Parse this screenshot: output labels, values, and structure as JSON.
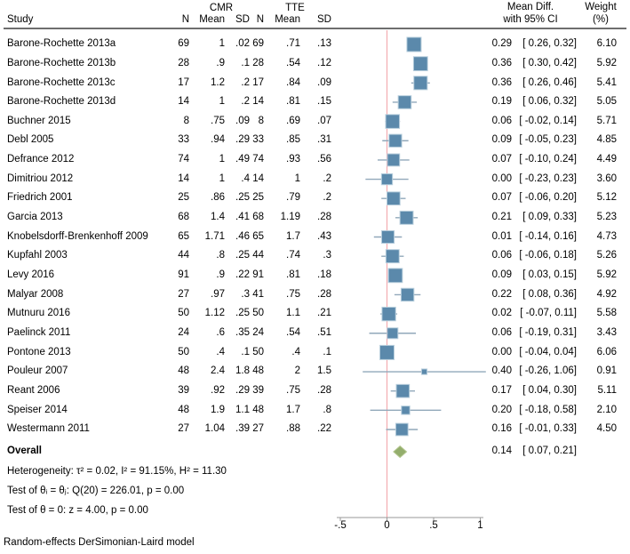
{
  "header": {
    "group1": "CMR",
    "group2": "TTE",
    "study": "Study",
    "n": "N",
    "mean": "Mean",
    "sd": "SD",
    "es_line1": "Mean Diff.",
    "es_line2": "with 95% CI",
    "weight_line1": "Weight",
    "weight_line2": "(%)"
  },
  "chart_data": {
    "type": "scatter",
    "subtype": "forest-plot-meta-analysis",
    "title": "",
    "xlabel": "",
    "x_axis": {
      "range": [
        -0.5,
        1.1
      ],
      "ticks": [
        -0.5,
        0,
        0.5,
        1
      ],
      "tick_labels": [
        "-.5",
        "0",
        ".5",
        "1"
      ],
      "reference_line": 0
    },
    "studies": [
      {
        "name": "Barone-Rochette 2013a",
        "cmr_n": "69",
        "cmr_mean": "1",
        "cmr_sd": ".02",
        "tte_n": "69",
        "tte_mean": ".71",
        "tte_sd": ".13",
        "est": 0.29,
        "lo": 0.26,
        "hi": 0.32,
        "weight": 6.1,
        "est_label": "0.29",
        "ci_label": "[ 0.26, 0.32]",
        "weight_label": "6.10"
      },
      {
        "name": "Barone-Rochette 2013b",
        "cmr_n": "28",
        "cmr_mean": ".9",
        "cmr_sd": ".1",
        "tte_n": "28",
        "tte_mean": ".54",
        "tte_sd": ".12",
        "est": 0.36,
        "lo": 0.3,
        "hi": 0.42,
        "weight": 5.92,
        "est_label": "0.36",
        "ci_label": "[ 0.30, 0.42]",
        "weight_label": "5.92"
      },
      {
        "name": "Barone-Rochette 2013c",
        "cmr_n": "17",
        "cmr_mean": "1.2",
        "cmr_sd": ".2",
        "tte_n": "17",
        "tte_mean": ".84",
        "tte_sd": ".09",
        "est": 0.36,
        "lo": 0.26,
        "hi": 0.46,
        "weight": 5.41,
        "est_label": "0.36",
        "ci_label": "[ 0.26, 0.46]",
        "weight_label": "5.41"
      },
      {
        "name": "Barone-Rochette 2013d",
        "cmr_n": "14",
        "cmr_mean": "1",
        "cmr_sd": ".2",
        "tte_n": "14",
        "tte_mean": ".81",
        "tte_sd": ".15",
        "est": 0.19,
        "lo": 0.06,
        "hi": 0.32,
        "weight": 5.05,
        "est_label": "0.19",
        "ci_label": "[ 0.06, 0.32]",
        "weight_label": "5.05"
      },
      {
        "name": "Buchner 2015",
        "cmr_n": "8",
        "cmr_mean": ".75",
        "cmr_sd": ".09",
        "tte_n": "8",
        "tte_mean": ".69",
        "tte_sd": ".07",
        "est": 0.06,
        "lo": -0.02,
        "hi": 0.14,
        "weight": 5.71,
        "est_label": "0.06",
        "ci_label": "[ -0.02, 0.14]",
        "weight_label": "5.71"
      },
      {
        "name": "Debl 2005",
        "cmr_n": "33",
        "cmr_mean": ".94",
        "cmr_sd": ".29",
        "tte_n": "33",
        "tte_mean": ".85",
        "tte_sd": ".31",
        "est": 0.09,
        "lo": -0.05,
        "hi": 0.23,
        "weight": 4.85,
        "est_label": "0.09",
        "ci_label": "[ -0.05, 0.23]",
        "weight_label": "4.85"
      },
      {
        "name": "Defrance 2012",
        "cmr_n": "74",
        "cmr_mean": "1",
        "cmr_sd": ".49",
        "tte_n": "74",
        "tte_mean": ".93",
        "tte_sd": ".56",
        "est": 0.07,
        "lo": -0.1,
        "hi": 0.24,
        "weight": 4.49,
        "est_label": "0.07",
        "ci_label": "[ -0.10, 0.24]",
        "weight_label": "4.49"
      },
      {
        "name": "Dimitriou 2012",
        "cmr_n": "14",
        "cmr_mean": "1",
        "cmr_sd": ".4",
        "tte_n": "14",
        "tte_mean": "1",
        "tte_sd": ".2",
        "est": 0.0,
        "lo": -0.23,
        "hi": 0.23,
        "weight": 3.6,
        "est_label": "0.00",
        "ci_label": "[ -0.23, 0.23]",
        "weight_label": "3.60"
      },
      {
        "name": "Friedrich 2001",
        "cmr_n": "25",
        "cmr_mean": ".86",
        "cmr_sd": ".25",
        "tte_n": "25",
        "tte_mean": ".79",
        "tte_sd": ".2",
        "est": 0.07,
        "lo": -0.06,
        "hi": 0.2,
        "weight": 5.12,
        "est_label": "0.07",
        "ci_label": "[ -0.06, 0.20]",
        "weight_label": "5.12"
      },
      {
        "name": "Garcia 2013",
        "cmr_n": "68",
        "cmr_mean": "1.4",
        "cmr_sd": ".41",
        "tte_n": "68",
        "tte_mean": "1.19",
        "tte_sd": ".28",
        "est": 0.21,
        "lo": 0.09,
        "hi": 0.33,
        "weight": 5.23,
        "est_label": "0.21",
        "ci_label": "[ 0.09, 0.33]",
        "weight_label": "5.23"
      },
      {
        "name": "Knobelsdorff-Brenkenhoff 2009",
        "cmr_n": "65",
        "cmr_mean": "1.71",
        "cmr_sd": ".46",
        "tte_n": "65",
        "tte_mean": "1.7",
        "tte_sd": ".43",
        "est": 0.01,
        "lo": -0.14,
        "hi": 0.16,
        "weight": 4.73,
        "est_label": "0.01",
        "ci_label": "[ -0.14, 0.16]",
        "weight_label": "4.73"
      },
      {
        "name": "Kupfahl 2003",
        "cmr_n": "44",
        "cmr_mean": ".8",
        "cmr_sd": ".25",
        "tte_n": "44",
        "tte_mean": ".74",
        "tte_sd": ".3",
        "est": 0.06,
        "lo": -0.06,
        "hi": 0.18,
        "weight": 5.26,
        "est_label": "0.06",
        "ci_label": "[ -0.06, 0.18]",
        "weight_label": "5.26"
      },
      {
        "name": "Levy 2016",
        "cmr_n": "91",
        "cmr_mean": ".9",
        "cmr_sd": ".22",
        "tte_n": "91",
        "tte_mean": ".81",
        "tte_sd": ".18",
        "est": 0.09,
        "lo": 0.03,
        "hi": 0.15,
        "weight": 5.92,
        "est_label": "0.09",
        "ci_label": "[ 0.03, 0.15]",
        "weight_label": "5.92"
      },
      {
        "name": "Malyar 2008",
        "cmr_n": "27",
        "cmr_mean": ".97",
        "cmr_sd": ".3",
        "tte_n": "41",
        "tte_mean": ".75",
        "tte_sd": ".28",
        "est": 0.22,
        "lo": 0.08,
        "hi": 0.36,
        "weight": 4.92,
        "est_label": "0.22",
        "ci_label": "[ 0.08, 0.36]",
        "weight_label": "4.92"
      },
      {
        "name": "Mutnuru 2016",
        "cmr_n": "50",
        "cmr_mean": "1.12",
        "cmr_sd": ".25",
        "tte_n": "50",
        "tte_mean": "1.1",
        "tte_sd": ".21",
        "est": 0.02,
        "lo": -0.07,
        "hi": 0.11,
        "weight": 5.58,
        "est_label": "0.02",
        "ci_label": "[ -0.07, 0.11]",
        "weight_label": "5.58"
      },
      {
        "name": "Paelinck 2011",
        "cmr_n": "24",
        "cmr_mean": ".6",
        "cmr_sd": ".35",
        "tte_n": "24",
        "tte_mean": ".54",
        "tte_sd": ".51",
        "est": 0.06,
        "lo": -0.19,
        "hi": 0.31,
        "weight": 3.43,
        "est_label": "0.06",
        "ci_label": "[ -0.19, 0.31]",
        "weight_label": "3.43"
      },
      {
        "name": "Pontone 2013",
        "cmr_n": "50",
        "cmr_mean": ".4",
        "cmr_sd": ".1",
        "tte_n": "50",
        "tte_mean": ".4",
        "tte_sd": ".1",
        "est": 0.0,
        "lo": -0.04,
        "hi": 0.04,
        "weight": 6.06,
        "est_label": "0.00",
        "ci_label": "[ -0.04, 0.04]",
        "weight_label": "6.06"
      },
      {
        "name": "Pouleur 2007",
        "cmr_n": "48",
        "cmr_mean": "2.4",
        "cmr_sd": "1.8",
        "tte_n": "48",
        "tte_mean": "2",
        "tte_sd": "1.5",
        "est": 0.4,
        "lo": -0.26,
        "hi": 1.06,
        "weight": 0.91,
        "est_label": "0.40",
        "ci_label": "[ -0.26, 1.06]",
        "weight_label": "0.91"
      },
      {
        "name": "Reant 2006",
        "cmr_n": "39",
        "cmr_mean": ".92",
        "cmr_sd": ".29",
        "tte_n": "39",
        "tte_mean": ".75",
        "tte_sd": ".28",
        "est": 0.17,
        "lo": 0.04,
        "hi": 0.3,
        "weight": 5.11,
        "est_label": "0.17",
        "ci_label": "[ 0.04, 0.30]",
        "weight_label": "5.11"
      },
      {
        "name": "Speiser 2014",
        "cmr_n": "48",
        "cmr_mean": "1.9",
        "cmr_sd": "1.1",
        "tte_n": "48",
        "tte_mean": "1.7",
        "tte_sd": ".8",
        "est": 0.2,
        "lo": -0.18,
        "hi": 0.58,
        "weight": 2.1,
        "est_label": "0.20",
        "ci_label": "[ -0.18, 0.58]",
        "weight_label": "2.10"
      },
      {
        "name": "Westermann 2011",
        "cmr_n": "27",
        "cmr_mean": "1.04",
        "cmr_sd": ".39",
        "tte_n": "27",
        "tte_mean": ".88",
        "tte_sd": ".22",
        "est": 0.16,
        "lo": -0.01,
        "hi": 0.33,
        "weight": 4.5,
        "est_label": "0.16",
        "ci_label": "[ -0.01, 0.33]",
        "weight_label": "4.50"
      }
    ],
    "overall": {
      "label": "Overall",
      "est": 0.14,
      "lo": 0.07,
      "hi": 0.21,
      "est_label": "0.14",
      "ci_label": "[ 0.07, 0.21]"
    }
  },
  "stats": {
    "heterogeneity": "Heterogeneity: τ² = 0.02, I² = 91.15%, H² = 11.30",
    "test_homogeneity": "Test of θᵢ = θⱼ: Q(20) = 226.01, p = 0.00",
    "test_effect": "Test of θ = 0: z = 4.00, p = 0.00"
  },
  "footer": "Random-effects DerSimonian-Laird model",
  "colors": {
    "marker": "#5b89ab",
    "marker_border": "#b9cfdd",
    "ci": "#91a8ba",
    "ref_line": "#f2a3a8",
    "diamond": "#94ae6d",
    "diamond_border": "#b4c790",
    "axis": "#999999",
    "text": "#000000"
  }
}
